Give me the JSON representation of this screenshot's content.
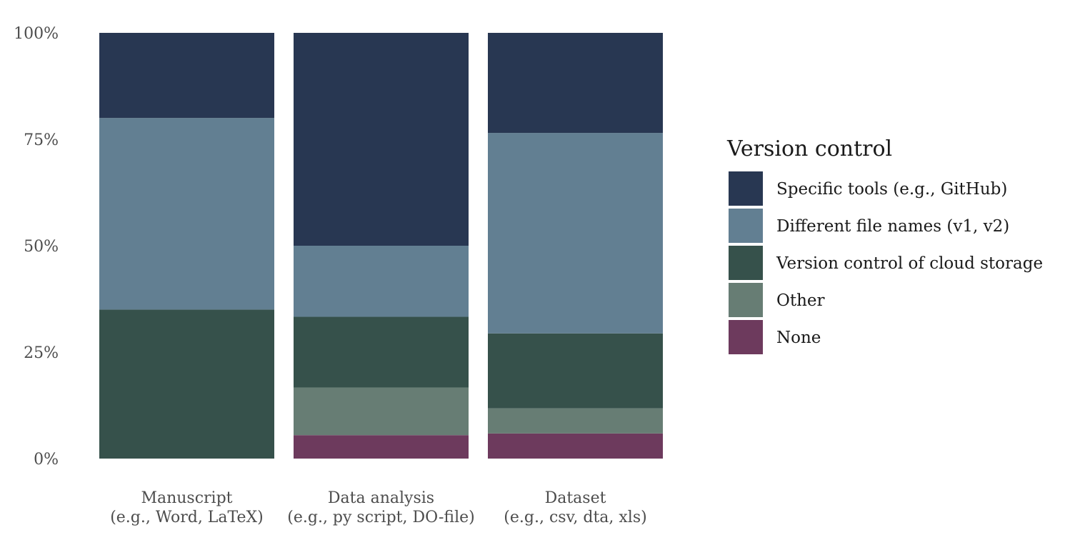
{
  "chart_data": {
    "type": "bar",
    "stacked": true,
    "percent": true,
    "categories": [
      [
        "Manuscript",
        "(e.g., Word, LaTeX)"
      ],
      [
        "Data analysis",
        "(e.g., py script, DO-file)"
      ],
      [
        "Dataset",
        "(e.g., csv, dta, xls)"
      ]
    ],
    "yticks": [
      "0%",
      "25%",
      "50%",
      "75%",
      "100%"
    ],
    "ylim": [
      0,
      100
    ],
    "grid": false,
    "legend": {
      "title": "Version control",
      "placement": "right"
    },
    "series": [
      {
        "name": "Specific tools (e.g., GitHub)",
        "color": "#283752",
        "values": [
          20,
          50,
          23.5
        ]
      },
      {
        "name": "Different file names (v1, v2)",
        "color": "#627f92",
        "values": [
          45,
          16.7,
          47.1
        ]
      },
      {
        "name": "Version control of cloud storage",
        "color": "#36514b",
        "values": [
          35,
          16.6,
          17.6
        ]
      },
      {
        "name": "Other",
        "color": "#677d74",
        "values": [
          0,
          11.2,
          5.9
        ]
      },
      {
        "name": "None",
        "color": "#6d3a5d",
        "values": [
          0,
          5.5,
          5.9
        ]
      }
    ]
  }
}
